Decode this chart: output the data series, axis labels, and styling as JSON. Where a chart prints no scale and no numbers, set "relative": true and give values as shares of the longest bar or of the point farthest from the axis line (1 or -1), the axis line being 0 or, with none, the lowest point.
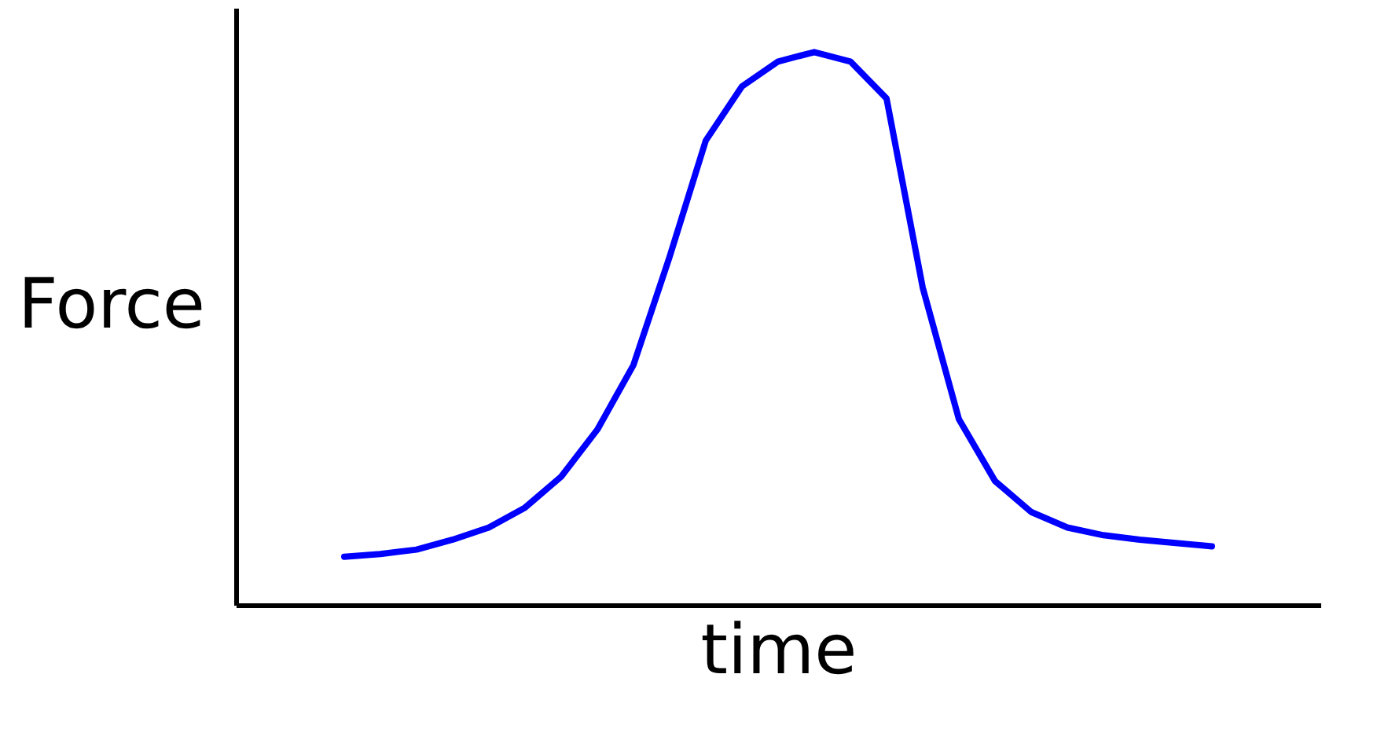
{
  "chart_data": {
    "type": "line",
    "relative": true,
    "xlabel": "time",
    "ylabel": "Force",
    "grid": false,
    "line_style": "solid",
    "marker": "none",
    "categories": [
      null,
      null,
      null,
      null,
      null,
      null,
      null,
      null,
      null,
      null,
      null,
      null,
      null,
      null,
      null,
      null,
      null,
      null,
      null,
      null,
      null,
      null,
      null,
      null,
      null
    ],
    "series": [
      {
        "color": "#0000ff",
        "values": [
          0.087,
          0.092,
          0.1,
          0.118,
          0.14,
          0.176,
          0.232,
          0.317,
          0.434,
          0.63,
          0.84,
          0.938,
          0.983,
          1.0,
          0.983,
          0.916,
          0.574,
          0.336,
          0.224,
          0.168,
          0.14,
          0.126,
          0.118,
          0.112,
          0.106
        ]
      }
    ]
  }
}
